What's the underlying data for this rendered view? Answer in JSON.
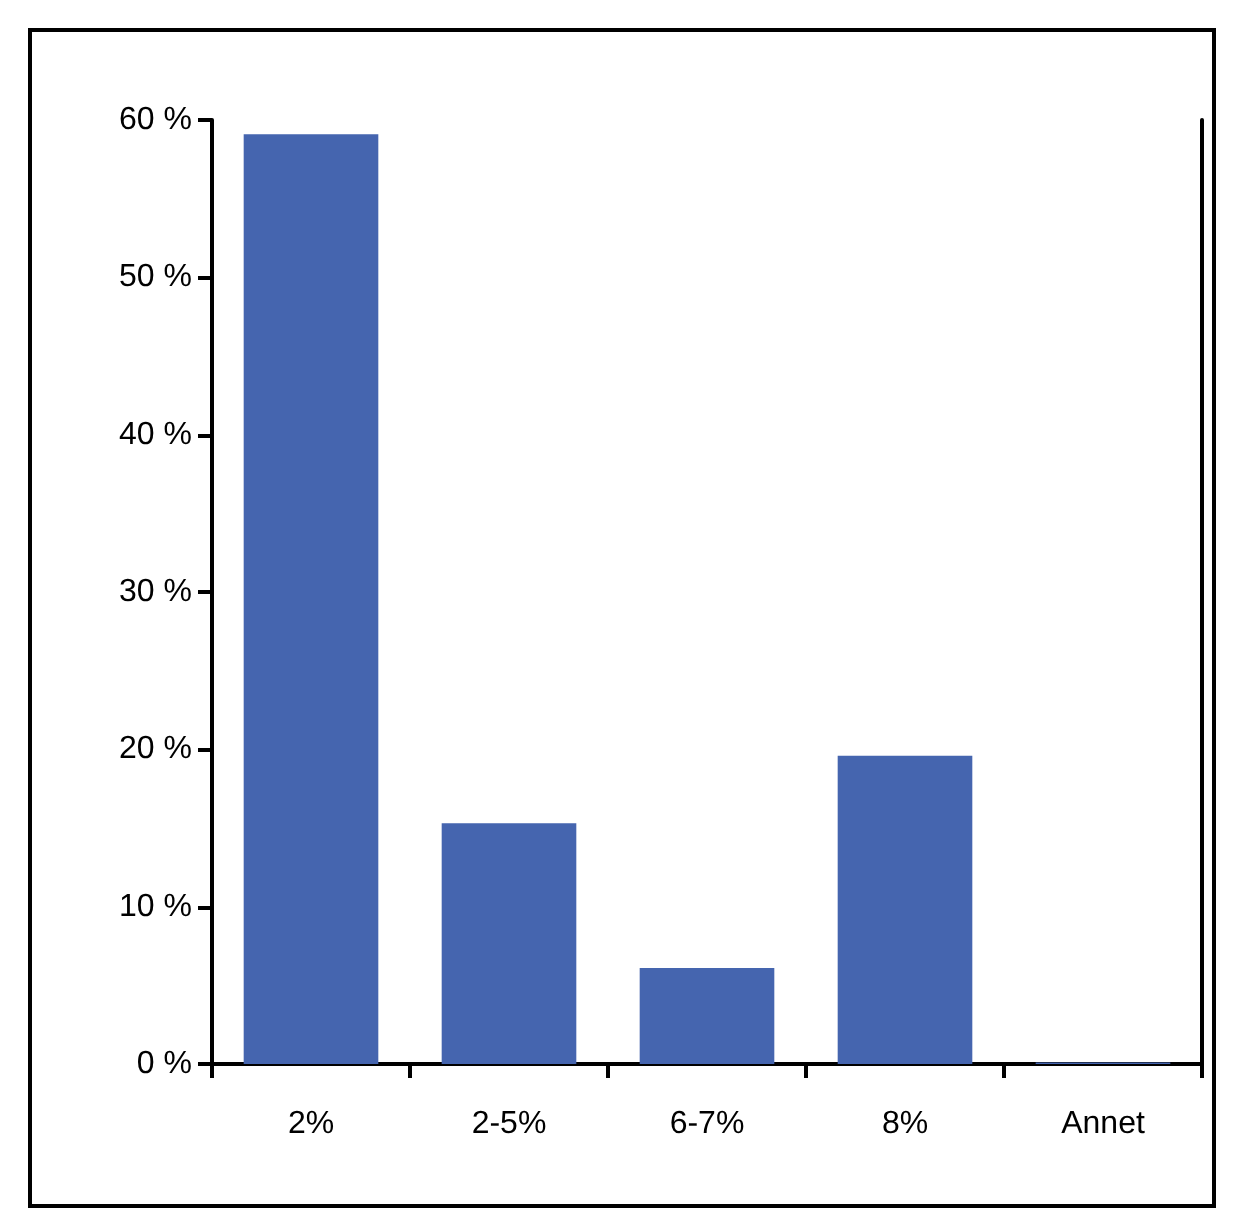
{
  "chart_data": {
    "type": "bar",
    "categories": [
      "2%",
      "2-5%",
      "6-7%",
      "8%",
      "Annet"
    ],
    "values": [
      59.1,
      15.3,
      6.1,
      19.6,
      0.1
    ],
    "color": "#4565af",
    "ylim": [
      0,
      60
    ],
    "yticks": [
      {
        "value": 0,
        "label": "0 %"
      },
      {
        "value": 10,
        "label": "10 %"
      },
      {
        "value": 20,
        "label": "20 %"
      },
      {
        "value": 30,
        "label": "30 %"
      },
      {
        "value": 40,
        "label": "40 %"
      },
      {
        "value": 50,
        "label": "50 %"
      },
      {
        "value": 60,
        "label": "60 %"
      }
    ],
    "grid": false
  }
}
